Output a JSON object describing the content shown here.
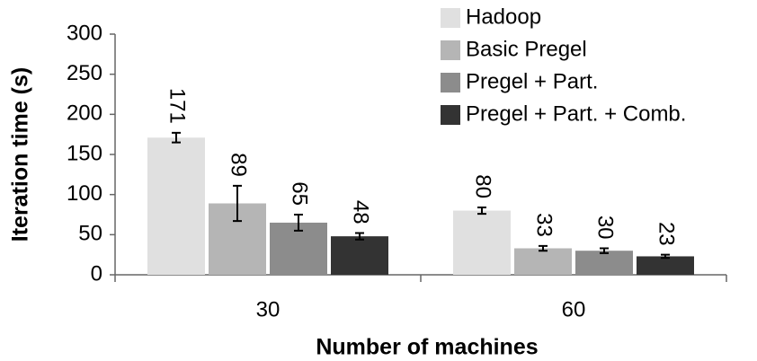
{
  "chart_data": {
    "type": "bar",
    "y_label": "Iteration time (s)",
    "x_label": "Number of machines",
    "categories": [
      "30",
      "60"
    ],
    "series": [
      {
        "name": "Hadoop",
        "color": "#e0e0e0",
        "values": [
          171,
          80
        ],
        "errors": [
          6,
          4
        ]
      },
      {
        "name": "Basic Pregel",
        "color": "#b5b5b5",
        "values": [
          89,
          33
        ],
        "errors": [
          22,
          3
        ]
      },
      {
        "name": "Pregel + Part.",
        "color": "#8c8c8c",
        "values": [
          65,
          30
        ],
        "errors": [
          10,
          3
        ]
      },
      {
        "name": "Pregel + Part. + Comb.",
        "color": "#333333",
        "values": [
          48,
          23
        ],
        "errors": [
          4,
          2
        ]
      }
    ],
    "ylim": [
      0,
      300
    ],
    "yticks": [
      0,
      50,
      100,
      150,
      200,
      250,
      300
    ],
    "grid": false,
    "legend": "top-right"
  }
}
